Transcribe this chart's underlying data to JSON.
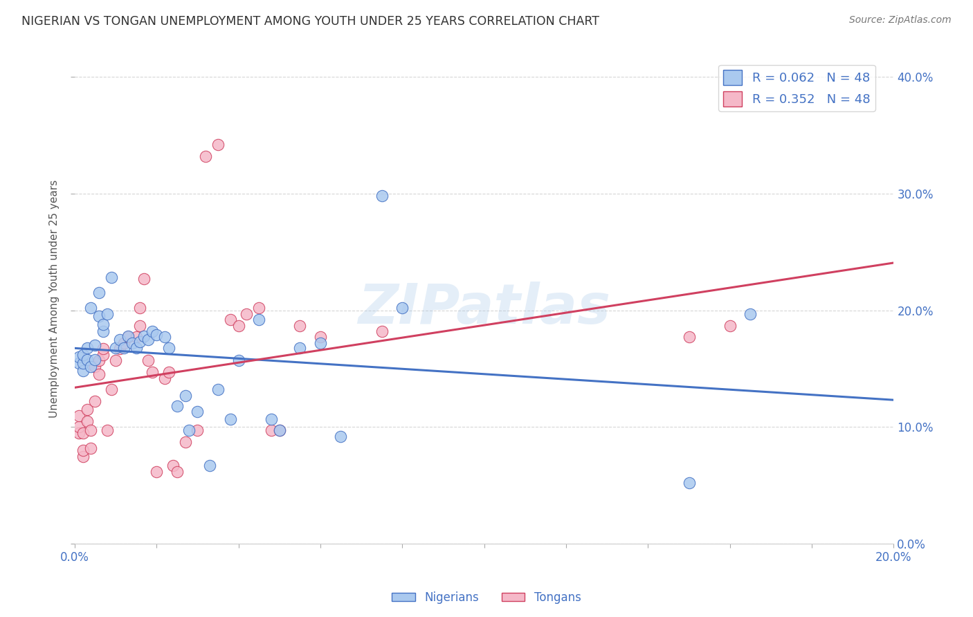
{
  "title": "NIGERIAN VS TONGAN UNEMPLOYMENT AMONG YOUTH UNDER 25 YEARS CORRELATION CHART",
  "source": "Source: ZipAtlas.com",
  "ylabel": "Unemployment Among Youth under 25 years",
  "x_min": 0.0,
  "x_max": 0.2,
  "y_min": 0.0,
  "y_max": 0.42,
  "x_ticks": [
    0.0,
    0.02,
    0.04,
    0.06,
    0.08,
    0.1,
    0.12,
    0.14,
    0.16,
    0.18,
    0.2
  ],
  "x_tick_labels_show": [
    "0.0%",
    "",
    "",
    "",
    "",
    "",
    "",
    "",
    "",
    "",
    "20.0%"
  ],
  "y_ticks": [
    0.0,
    0.1,
    0.2,
    0.3,
    0.4
  ],
  "y_tick_labels": [
    "0.0%",
    "10.0%",
    "20.0%",
    "30.0%",
    "40.0%"
  ],
  "color_nigerian": "#aac9ef",
  "color_tongan": "#f5b8c8",
  "color_line_nigerian": "#4472c4",
  "color_line_tongan": "#d04060",
  "r_nigerian": 0.062,
  "r_tongan": 0.352,
  "n_nigerian": 48,
  "n_tongan": 48,
  "nigerian_x": [
    0.001,
    0.001,
    0.002,
    0.002,
    0.002,
    0.003,
    0.003,
    0.004,
    0.004,
    0.005,
    0.005,
    0.006,
    0.006,
    0.007,
    0.007,
    0.008,
    0.009,
    0.01,
    0.011,
    0.012,
    0.013,
    0.014,
    0.015,
    0.016,
    0.017,
    0.018,
    0.019,
    0.02,
    0.022,
    0.023,
    0.025,
    0.027,
    0.028,
    0.03,
    0.033,
    0.035,
    0.038,
    0.04,
    0.045,
    0.048,
    0.05,
    0.055,
    0.06,
    0.065,
    0.075,
    0.08,
    0.15,
    0.165
  ],
  "nigerian_y": [
    0.155,
    0.16,
    0.148,
    0.155,
    0.162,
    0.158,
    0.168,
    0.152,
    0.202,
    0.158,
    0.17,
    0.195,
    0.215,
    0.182,
    0.188,
    0.197,
    0.228,
    0.168,
    0.175,
    0.168,
    0.178,
    0.172,
    0.168,
    0.173,
    0.178,
    0.175,
    0.182,
    0.179,
    0.177,
    0.168,
    0.118,
    0.127,
    0.097,
    0.113,
    0.067,
    0.132,
    0.107,
    0.157,
    0.192,
    0.107,
    0.097,
    0.168,
    0.172,
    0.092,
    0.298,
    0.202,
    0.052,
    0.197
  ],
  "tongan_x": [
    0.001,
    0.001,
    0.001,
    0.002,
    0.002,
    0.002,
    0.003,
    0.003,
    0.004,
    0.004,
    0.005,
    0.005,
    0.006,
    0.006,
    0.007,
    0.007,
    0.008,
    0.009,
    0.01,
    0.011,
    0.012,
    0.013,
    0.015,
    0.016,
    0.016,
    0.017,
    0.018,
    0.019,
    0.02,
    0.022,
    0.023,
    0.024,
    0.025,
    0.027,
    0.03,
    0.032,
    0.035,
    0.038,
    0.04,
    0.042,
    0.045,
    0.048,
    0.05,
    0.055,
    0.06,
    0.075,
    0.15,
    0.16
  ],
  "tongan_y": [
    0.095,
    0.1,
    0.11,
    0.075,
    0.08,
    0.095,
    0.105,
    0.115,
    0.082,
    0.097,
    0.122,
    0.152,
    0.145,
    0.157,
    0.162,
    0.167,
    0.097,
    0.132,
    0.157,
    0.167,
    0.172,
    0.177,
    0.177,
    0.187,
    0.202,
    0.227,
    0.157,
    0.147,
    0.062,
    0.142,
    0.147,
    0.067,
    0.062,
    0.087,
    0.097,
    0.332,
    0.342,
    0.192,
    0.187,
    0.197,
    0.202,
    0.097,
    0.097,
    0.187,
    0.177,
    0.182,
    0.177,
    0.187
  ],
  "watermark": "ZIPatlas",
  "background_color": "#ffffff",
  "grid_color": "#cccccc",
  "title_color": "#333333",
  "tick_color": "#4472c4"
}
